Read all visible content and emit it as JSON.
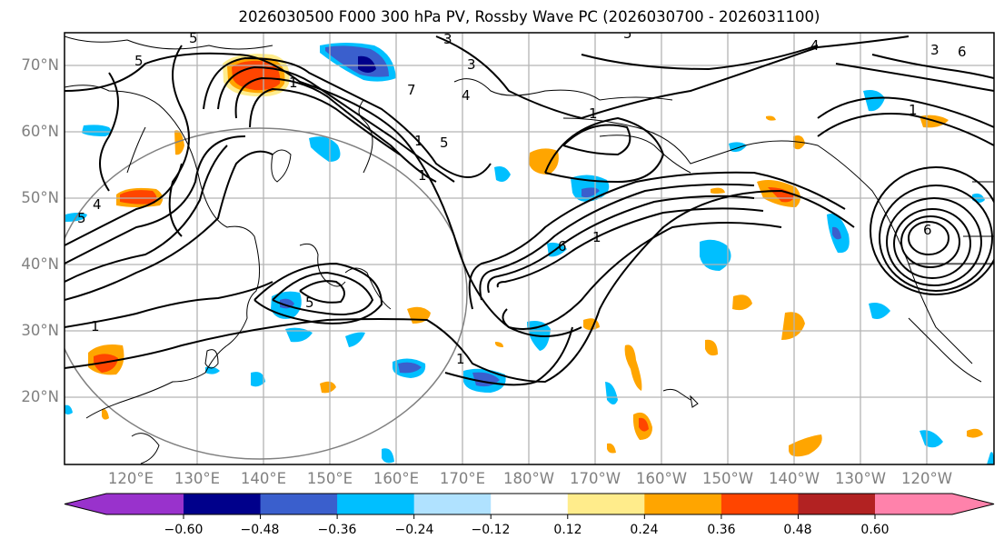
{
  "title": "2026030500 F000 300 hPa PV, Rossby Wave PC (2026030700 - 2026031100)",
  "map": {
    "projection": "cylindrical",
    "region": "North Pacific",
    "lat_labels": [
      "70°N",
      "60°N",
      "50°N",
      "40°N",
      "30°N",
      "20°N"
    ],
    "lon_labels": [
      "120°E",
      "130°E",
      "140°E",
      "150°E",
      "160°E",
      "170°E",
      "180°W",
      "170°W",
      "160°W",
      "150°W",
      "140°W",
      "130°W",
      "120°W"
    ],
    "contour_field": "300 hPa PV",
    "contour_labels": [
      "5",
      "5",
      "3",
      "5",
      "4",
      "1",
      "7",
      "4",
      "3",
      "1",
      "1",
      "5",
      "1",
      "1",
      "1",
      "4",
      "5",
      "6",
      "1",
      "3",
      "6",
      "1",
      "6"
    ],
    "shaded_field": "Rossby Wave PC",
    "grid_color": "#b0b0b0",
    "circle_color": "#808080"
  },
  "colorbar": {
    "ticks": [
      "−0.60",
      "−0.48",
      "−0.36",
      "−0.24",
      "−0.12",
      "0.12",
      "0.24",
      "0.36",
      "0.48",
      "0.60"
    ],
    "tick_values": [
      -0.6,
      -0.48,
      -0.36,
      -0.24,
      -0.12,
      0.12,
      0.24,
      0.36,
      0.48,
      0.6
    ],
    "colors": [
      "#9932cc",
      "#00008b",
      "#3a5fcd",
      "#00bfff",
      "#b0e2ff",
      "#ffffff",
      "#ffec8b",
      "#ffa500",
      "#ff4500",
      "#b22222",
      "#ff82ab"
    ],
    "extend": "both"
  }
}
